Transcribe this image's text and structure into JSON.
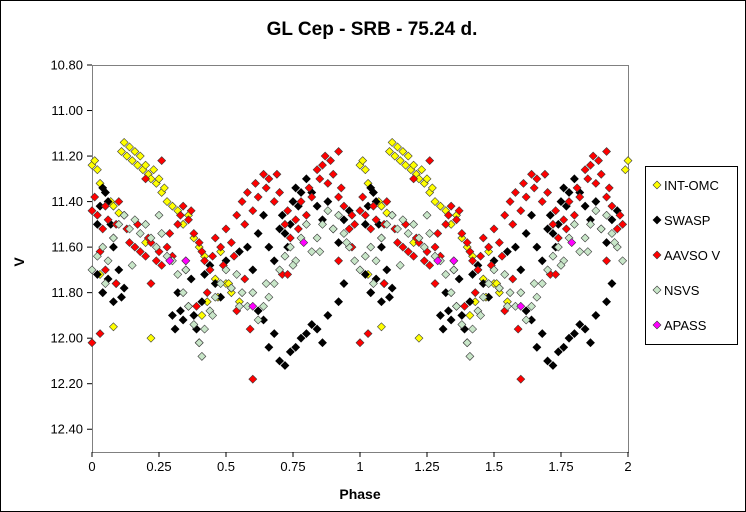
{
  "chart_data": {
    "type": "scatter",
    "title": "GL Cep - SRB - 75.24 d.",
    "xlabel": "Phase",
    "ylabel": "V",
    "xlim": [
      0,
      2
    ],
    "ylim": [
      10.8,
      12.5
    ],
    "y_inverted": true,
    "x_ticks": [
      "0",
      "0.25",
      "0.5",
      "0.75",
      "1",
      "1.25",
      "1.5",
      "1.75",
      "2"
    ],
    "y_ticks": [
      "10.80",
      "11.00",
      "11.20",
      "11.40",
      "11.60",
      "11.80",
      "12.00",
      "12.20",
      "12.40"
    ],
    "grid": false,
    "legend_position": "right",
    "legend": [
      "INT-OMC",
      "SWASP",
      "AAVSO V",
      "NSVS",
      "APASS"
    ],
    "series": [
      {
        "name": "INT-OMC",
        "color": "#ffff00",
        "marker": "diamond",
        "x": [
          0.0,
          0.01,
          0.02,
          0.03,
          0.05,
          0.07,
          0.08,
          0.1,
          0.11,
          0.12,
          0.13,
          0.14,
          0.15,
          0.16,
          0.17,
          0.18,
          0.19,
          0.2,
          0.21,
          0.22,
          0.23,
          0.24,
          0.25,
          0.26,
          0.27,
          0.28,
          0.3,
          0.32,
          0.34,
          0.36,
          0.38,
          0.4,
          0.42,
          0.44,
          0.46,
          0.48,
          0.5,
          0.52,
          0.55,
          0.03,
          0.04,
          0.08,
          0.2,
          0.22,
          0.35,
          0.41,
          0.43,
          0.47,
          0.51,
          1.0,
          1.01,
          1.02,
          1.03,
          1.05,
          1.07,
          1.08,
          1.1,
          1.11,
          1.12,
          1.13,
          1.14,
          1.15,
          1.16,
          1.17,
          1.18,
          1.19,
          1.2,
          1.21,
          1.22,
          1.23,
          1.24,
          1.25,
          1.26,
          1.27,
          1.28,
          1.3,
          1.32,
          1.34,
          1.36,
          1.38,
          1.4,
          1.42,
          1.44,
          1.46,
          1.48,
          1.5,
          1.52,
          1.55,
          1.03,
          1.04,
          1.08,
          1.2,
          1.22,
          1.35,
          1.41,
          1.43,
          1.47,
          1.51,
          1.99,
          2.0
        ],
        "y": [
          11.24,
          11.22,
          11.26,
          11.32,
          11.36,
          11.4,
          11.42,
          11.45,
          11.18,
          11.14,
          11.2,
          11.16,
          11.22,
          11.18,
          11.24,
          11.2,
          11.26,
          11.24,
          11.28,
          11.3,
          11.26,
          11.32,
          11.3,
          11.36,
          11.34,
          11.4,
          11.42,
          11.44,
          11.5,
          11.46,
          11.56,
          11.6,
          11.64,
          11.7,
          11.74,
          11.62,
          11.76,
          11.8,
          11.84,
          11.72,
          11.8,
          11.95,
          11.58,
          12.0,
          11.66,
          11.9,
          11.84,
          11.82,
          11.76,
          11.24,
          11.22,
          11.26,
          11.32,
          11.36,
          11.4,
          11.42,
          11.45,
          11.18,
          11.14,
          11.2,
          11.16,
          11.22,
          11.18,
          11.24,
          11.2,
          11.26,
          11.24,
          11.28,
          11.3,
          11.26,
          11.32,
          11.3,
          11.36,
          11.34,
          11.4,
          11.42,
          11.44,
          11.5,
          11.46,
          11.56,
          11.6,
          11.64,
          11.7,
          11.74,
          11.62,
          11.76,
          11.8,
          11.84,
          11.72,
          11.8,
          11.95,
          11.58,
          12.0,
          11.66,
          11.9,
          11.84,
          11.82,
          11.76,
          11.26,
          11.22
        ]
      },
      {
        "name": "SWASP",
        "color": "#000000",
        "marker": "diamond",
        "x": [
          0.02,
          0.03,
          0.04,
          0.05,
          0.06,
          0.07,
          0.08,
          0.1,
          0.12,
          0.02,
          0.04,
          0.06,
          0.08,
          0.09,
          0.11,
          0.3,
          0.31,
          0.32,
          0.33,
          0.34,
          0.35,
          0.36,
          0.37,
          0.38,
          0.39,
          0.4,
          0.41,
          0.42,
          0.44,
          0.46,
          0.48,
          0.5,
          0.52,
          0.55,
          0.58,
          0.6,
          0.62,
          0.64,
          0.66,
          0.68,
          0.7,
          0.71,
          0.72,
          0.73,
          0.74,
          0.75,
          0.76,
          0.77,
          0.78,
          0.8,
          0.82,
          0.84,
          0.86,
          0.88,
          0.9,
          0.92,
          0.94,
          0.96,
          0.7,
          0.72,
          0.74,
          0.76,
          0.78,
          0.8,
          0.82,
          0.84,
          0.86,
          0.88,
          0.66,
          0.68,
          0.62,
          0.64,
          0.92,
          0.94,
          1.02,
          1.03,
          1.04,
          1.05,
          1.06,
          1.07,
          1.08,
          1.1,
          1.12,
          1.02,
          1.04,
          1.06,
          1.08,
          1.09,
          1.11,
          1.3,
          1.31,
          1.32,
          1.33,
          1.34,
          1.35,
          1.36,
          1.37,
          1.38,
          1.39,
          1.4,
          1.41,
          1.42,
          1.44,
          1.46,
          1.48,
          1.5,
          1.52,
          1.55,
          1.58,
          1.6,
          1.62,
          1.64,
          1.66,
          1.68,
          1.7,
          1.71,
          1.72,
          1.73,
          1.74,
          1.75,
          1.76,
          1.77,
          1.78,
          1.8,
          1.82,
          1.84,
          1.86,
          1.88,
          1.9,
          1.92,
          1.94,
          1.96,
          1.7,
          1.72,
          1.74,
          1.76,
          1.78,
          1.8,
          1.82,
          1.84,
          1.86,
          1.88,
          1.66,
          1.68,
          1.62,
          1.64,
          1.92,
          1.94
        ],
        "y": [
          11.5,
          11.42,
          11.34,
          11.36,
          11.4,
          11.5,
          11.6,
          11.7,
          11.78,
          11.72,
          11.8,
          11.74,
          11.84,
          11.76,
          11.82,
          11.9,
          11.96,
          11.8,
          11.88,
          11.92,
          11.7,
          11.86,
          11.74,
          11.9,
          11.96,
          12.02,
          11.84,
          11.72,
          11.68,
          11.76,
          11.82,
          11.66,
          11.78,
          11.62,
          11.6,
          11.7,
          11.54,
          11.46,
          11.6,
          11.66,
          11.52,
          11.46,
          11.54,
          11.6,
          11.5,
          11.4,
          11.34,
          11.42,
          11.36,
          11.3,
          11.36,
          11.42,
          11.48,
          11.4,
          11.52,
          11.58,
          11.48,
          11.44,
          12.1,
          12.12,
          12.06,
          12.04,
          12.0,
          11.98,
          11.94,
          11.96,
          12.02,
          11.9,
          12.04,
          11.98,
          11.88,
          11.92,
          11.84,
          11.76,
          11.5,
          11.42,
          11.34,
          11.36,
          11.4,
          11.5,
          11.6,
          11.7,
          11.78,
          11.72,
          11.8,
          11.74,
          11.84,
          11.76,
          11.82,
          11.9,
          11.96,
          11.8,
          11.88,
          11.92,
          11.7,
          11.86,
          11.74,
          11.9,
          11.96,
          12.02,
          11.84,
          11.72,
          11.68,
          11.76,
          11.82,
          11.66,
          11.78,
          11.62,
          11.6,
          11.7,
          11.54,
          11.46,
          11.6,
          11.66,
          11.52,
          11.46,
          11.54,
          11.6,
          11.5,
          11.4,
          11.34,
          11.42,
          11.36,
          11.3,
          11.36,
          11.42,
          11.48,
          11.4,
          11.52,
          11.58,
          11.48,
          11.44,
          12.1,
          12.12,
          12.06,
          12.04,
          12.0,
          11.98,
          11.94,
          11.96,
          12.02,
          11.9,
          12.04,
          11.98,
          11.88,
          11.92,
          11.84,
          11.76
        ]
      },
      {
        "name": "AAVSO V",
        "color": "#ff0000",
        "marker": "diamond",
        "x": [
          0.0,
          0.01,
          0.02,
          0.04,
          0.05,
          0.06,
          0.08,
          0.09,
          0.1,
          0.12,
          0.13,
          0.14,
          0.16,
          0.17,
          0.18,
          0.2,
          0.21,
          0.22,
          0.24,
          0.25,
          0.26,
          0.28,
          0.29,
          0.3,
          0.32,
          0.33,
          0.34,
          0.36,
          0.37,
          0.38,
          0.4,
          0.41,
          0.42,
          0.44,
          0.45,
          0.46,
          0.48,
          0.49,
          0.5,
          0.52,
          0.53,
          0.54,
          0.56,
          0.57,
          0.58,
          0.6,
          0.61,
          0.62,
          0.64,
          0.65,
          0.66,
          0.68,
          0.69,
          0.7,
          0.72,
          0.73,
          0.74,
          0.76,
          0.77,
          0.78,
          0.8,
          0.81,
          0.82,
          0.84,
          0.85,
          0.86,
          0.88,
          0.89,
          0.9,
          0.92,
          0.93,
          0.94,
          0.96,
          0.97,
          0.98,
          0.0,
          0.03,
          0.09,
          0.2,
          0.26,
          0.39,
          0.54,
          0.59,
          0.6,
          0.71,
          0.87,
          0.92,
          1.0,
          1.01,
          1.02,
          1.04,
          1.05,
          1.06,
          1.08,
          1.09,
          1.1,
          1.12,
          1.13,
          1.14,
          1.16,
          1.17,
          1.18,
          1.2,
          1.21,
          1.22,
          1.24,
          1.25,
          1.26,
          1.28,
          1.29,
          1.3,
          1.32,
          1.33,
          1.34,
          1.36,
          1.37,
          1.38,
          1.4,
          1.41,
          1.42,
          1.44,
          1.45,
          1.46,
          1.48,
          1.49,
          1.5,
          1.52,
          1.53,
          1.54,
          1.56,
          1.57,
          1.58,
          1.6,
          1.61,
          1.62,
          1.64,
          1.65,
          1.66,
          1.68,
          1.69,
          1.7,
          1.72,
          1.73,
          1.74,
          1.76,
          1.77,
          1.78,
          1.8,
          1.81,
          1.82,
          1.84,
          1.85,
          1.86,
          1.88,
          1.89,
          1.9,
          1.92,
          1.93,
          1.94,
          1.96,
          1.97,
          1.98,
          1.0,
          1.03,
          1.09,
          1.2,
          1.26,
          1.39,
          1.54,
          1.59,
          1.6,
          1.71,
          1.87,
          1.92,
          0.03,
          0.05,
          0.22,
          0.43,
          0.57,
          0.73,
          0.92,
          0.97,
          1.28,
          1.43,
          1.57,
          1.73,
          1.92
        ],
        "y": [
          11.44,
          11.38,
          11.46,
          11.52,
          11.42,
          11.48,
          11.56,
          11.5,
          11.4,
          11.46,
          11.52,
          11.58,
          11.6,
          11.5,
          11.62,
          11.64,
          11.56,
          11.58,
          11.66,
          11.62,
          11.68,
          11.6,
          11.54,
          11.64,
          11.5,
          11.46,
          11.42,
          11.48,
          11.44,
          11.54,
          11.58,
          11.62,
          11.66,
          11.7,
          11.64,
          11.56,
          11.6,
          11.68,
          11.52,
          11.58,
          11.64,
          11.46,
          11.4,
          11.5,
          11.36,
          11.44,
          11.32,
          11.38,
          11.28,
          11.34,
          11.3,
          11.4,
          11.28,
          11.36,
          11.5,
          11.44,
          11.56,
          11.48,
          11.52,
          11.4,
          11.46,
          11.34,
          11.38,
          11.26,
          11.3,
          11.24,
          11.32,
          11.22,
          11.28,
          11.38,
          11.34,
          11.42,
          11.52,
          11.46,
          11.5,
          12.02,
          11.98,
          11.76,
          11.3,
          11.22,
          11.86,
          11.88,
          11.96,
          12.18,
          11.72,
          11.2,
          11.18,
          11.44,
          11.38,
          11.46,
          11.52,
          11.42,
          11.48,
          11.56,
          11.5,
          11.4,
          11.46,
          11.52,
          11.58,
          11.6,
          11.5,
          11.62,
          11.64,
          11.56,
          11.58,
          11.66,
          11.62,
          11.68,
          11.6,
          11.54,
          11.64,
          11.5,
          11.46,
          11.42,
          11.48,
          11.44,
          11.54,
          11.58,
          11.62,
          11.66,
          11.7,
          11.64,
          11.56,
          11.6,
          11.68,
          11.52,
          11.58,
          11.64,
          11.46,
          11.4,
          11.5,
          11.36,
          11.44,
          11.32,
          11.38,
          11.28,
          11.34,
          11.3,
          11.4,
          11.28,
          11.36,
          11.5,
          11.44,
          11.56,
          11.48,
          11.52,
          11.4,
          11.46,
          11.34,
          11.38,
          11.26,
          11.3,
          11.24,
          11.32,
          11.22,
          11.28,
          11.38,
          11.34,
          11.42,
          11.52,
          11.46,
          11.5,
          12.02,
          11.98,
          11.76,
          11.3,
          11.22,
          11.86,
          11.88,
          11.96,
          12.18,
          11.72,
          11.2,
          11.18,
          11.62,
          11.7,
          11.76,
          11.8,
          11.74,
          11.72,
          11.66,
          11.6,
          11.76,
          11.8,
          11.74,
          11.72,
          11.66
        ]
      },
      {
        "name": "NSVS",
        "color": "#c8e6c8",
        "marker": "diamond",
        "x": [
          0.0,
          0.02,
          0.04,
          0.06,
          0.08,
          0.1,
          0.12,
          0.14,
          0.16,
          0.18,
          0.2,
          0.22,
          0.24,
          0.26,
          0.28,
          0.3,
          0.32,
          0.34,
          0.36,
          0.38,
          0.4,
          0.42,
          0.44,
          0.46,
          0.48,
          0.5,
          0.52,
          0.54,
          0.56,
          0.58,
          0.6,
          0.62,
          0.64,
          0.66,
          0.68,
          0.7,
          0.72,
          0.74,
          0.76,
          0.78,
          0.8,
          0.82,
          0.84,
          0.86,
          0.88,
          0.9,
          0.92,
          0.94,
          0.96,
          0.98,
          0.05,
          0.15,
          0.25,
          0.35,
          0.41,
          0.45,
          0.55,
          0.65,
          0.75,
          0.85,
          0.95,
          1.0,
          1.02,
          1.04,
          1.06,
          1.08,
          1.1,
          1.12,
          1.14,
          1.16,
          1.18,
          1.2,
          1.22,
          1.24,
          1.26,
          1.28,
          1.3,
          1.32,
          1.34,
          1.36,
          1.38,
          1.4,
          1.42,
          1.44,
          1.46,
          1.48,
          1.5,
          1.52,
          1.54,
          1.56,
          1.58,
          1.6,
          1.62,
          1.64,
          1.66,
          1.68,
          1.7,
          1.72,
          1.74,
          1.76,
          1.78,
          1.8,
          1.82,
          1.84,
          1.86,
          1.88,
          1.9,
          1.92,
          1.94,
          1.96,
          1.98,
          1.05,
          1.15,
          1.25,
          1.35,
          1.41,
          1.45,
          1.55,
          1.65,
          1.75,
          1.85,
          1.95
        ],
        "y": [
          11.7,
          11.64,
          11.6,
          11.66,
          11.56,
          11.5,
          11.46,
          11.52,
          11.48,
          11.54,
          11.5,
          11.56,
          11.6,
          11.54,
          11.64,
          11.66,
          11.72,
          11.8,
          11.86,
          11.94,
          12.02,
          11.96,
          11.88,
          11.82,
          11.76,
          11.7,
          11.78,
          11.72,
          11.8,
          11.86,
          11.8,
          11.92,
          11.86,
          11.82,
          11.76,
          11.7,
          11.64,
          11.6,
          11.66,
          11.56,
          11.5,
          11.62,
          11.56,
          11.5,
          11.44,
          11.52,
          11.46,
          11.54,
          11.6,
          11.66,
          11.76,
          11.68,
          11.46,
          11.7,
          12.08,
          11.9,
          11.86,
          11.76,
          11.68,
          11.62,
          11.58,
          11.7,
          11.64,
          11.6,
          11.66,
          11.56,
          11.5,
          11.46,
          11.52,
          11.48,
          11.54,
          11.5,
          11.56,
          11.6,
          11.54,
          11.64,
          11.66,
          11.72,
          11.8,
          11.86,
          11.94,
          12.02,
          11.96,
          11.88,
          11.82,
          11.76,
          11.7,
          11.78,
          11.72,
          11.8,
          11.86,
          11.8,
          11.92,
          11.86,
          11.82,
          11.76,
          11.7,
          11.64,
          11.6,
          11.66,
          11.56,
          11.5,
          11.62,
          11.56,
          11.5,
          11.44,
          11.52,
          11.46,
          11.54,
          11.6,
          11.66,
          11.76,
          11.68,
          11.46,
          11.7,
          12.08,
          11.9,
          11.86,
          11.76,
          11.68,
          11.62,
          11.58
        ]
      },
      {
        "name": "APASS",
        "color": "#ff00ff",
        "marker": "diamond",
        "x": [
          0.29,
          0.35,
          0.6,
          0.79,
          1.29,
          1.35,
          1.6,
          1.79
        ],
        "y": [
          11.66,
          11.66,
          11.86,
          11.58,
          11.66,
          11.66,
          11.86,
          11.58
        ]
      }
    ]
  }
}
